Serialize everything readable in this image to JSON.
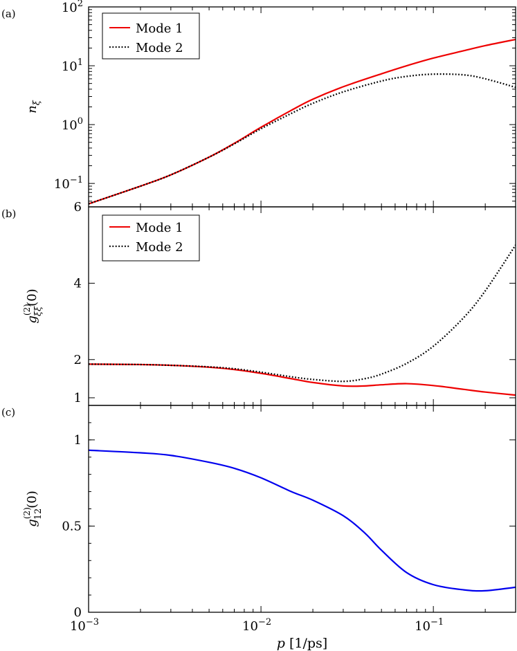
{
  "chart_data": [
    {
      "type": "line",
      "panel_label": "(a)",
      "ylabel": "n_ξ",
      "ylabel_main": "n",
      "ylabel_sub": "ξ",
      "xscale": "log",
      "yscale": "log",
      "xlim": [
        0.001,
        0.3
      ],
      "ylim": [
        0.04,
        100
      ],
      "yticks": [
        {
          "value": 0.1,
          "base": "10",
          "exp": "−1"
        },
        {
          "value": 1,
          "base": "10",
          "exp": "0"
        },
        {
          "value": 10,
          "base": "10",
          "exp": "1"
        },
        {
          "value": 100,
          "base": "10",
          "exp": "2"
        }
      ],
      "legend": {
        "position": "top-left",
        "entries": [
          "Mode 1",
          "Mode 2"
        ]
      },
      "series": [
        {
          "name": "Mode 1",
          "color": "#ee0000",
          "style": "solid",
          "x": [
            0.001,
            0.002,
            0.003,
            0.005,
            0.007,
            0.01,
            0.015,
            0.02,
            0.03,
            0.05,
            0.07,
            0.1,
            0.15,
            0.2,
            0.3
          ],
          "y": [
            0.045,
            0.09,
            0.14,
            0.28,
            0.48,
            0.9,
            1.75,
            2.7,
            4.4,
            7.3,
            10.0,
            13.5,
            18.0,
            22.0,
            28.0
          ]
        },
        {
          "name": "Mode 2",
          "color": "#000000",
          "style": "dotted",
          "x": [
            0.001,
            0.002,
            0.003,
            0.005,
            0.007,
            0.01,
            0.015,
            0.02,
            0.03,
            0.05,
            0.07,
            0.1,
            0.15,
            0.2,
            0.3
          ],
          "y": [
            0.045,
            0.09,
            0.14,
            0.28,
            0.47,
            0.85,
            1.55,
            2.3,
            3.6,
            5.5,
            6.6,
            7.2,
            7.0,
            6.0,
            4.3
          ]
        }
      ]
    },
    {
      "type": "line",
      "panel_label": "(b)",
      "ylabel": "g_ξξ^(2)(0)",
      "ylabel_main": "g",
      "ylabel_sup": "(2)",
      "ylabel_sub": "ξξ",
      "ylabel_tail": "(0)",
      "xscale": "log",
      "yscale": "linear",
      "xlim": [
        0.001,
        0.3
      ],
      "ylim": [
        0.8,
        6
      ],
      "yticks": [
        {
          "value": 1,
          "label": "1"
        },
        {
          "value": 2,
          "label": "2"
        },
        {
          "value": 4,
          "label": "4"
        },
        {
          "value": 6,
          "label": "6"
        }
      ],
      "legend": {
        "position": "top-left",
        "entries": [
          "Mode 1",
          "Mode 2"
        ]
      },
      "series": [
        {
          "name": "Mode 1",
          "color": "#ee0000",
          "style": "solid",
          "x": [
            0.001,
            0.002,
            0.003,
            0.005,
            0.007,
            0.01,
            0.015,
            0.02,
            0.03,
            0.04,
            0.05,
            0.07,
            0.1,
            0.15,
            0.2,
            0.3
          ],
          "y": [
            1.88,
            1.87,
            1.85,
            1.8,
            1.74,
            1.64,
            1.5,
            1.4,
            1.31,
            1.31,
            1.34,
            1.37,
            1.32,
            1.22,
            1.15,
            1.07
          ]
        },
        {
          "name": "Mode 2",
          "color": "#000000",
          "style": "dotted",
          "x": [
            0.001,
            0.002,
            0.003,
            0.005,
            0.007,
            0.01,
            0.015,
            0.02,
            0.03,
            0.04,
            0.05,
            0.07,
            0.1,
            0.15,
            0.2,
            0.3
          ],
          "y": [
            1.88,
            1.87,
            1.85,
            1.81,
            1.76,
            1.67,
            1.55,
            1.48,
            1.43,
            1.5,
            1.62,
            1.9,
            2.35,
            3.1,
            3.8,
            5.0
          ]
        }
      ]
    },
    {
      "type": "line",
      "panel_label": "(c)",
      "ylabel": "g_12^(2)(0)",
      "ylabel_main": "g",
      "ylabel_sup": "(2)",
      "ylabel_sub": "12",
      "ylabel_tail": "(0)",
      "xlabel": "p [1/ps]",
      "xlabel_main": "p",
      "xlabel_unit": "[1/ps]",
      "xscale": "log",
      "yscale": "linear",
      "xlim": [
        0.001,
        0.3
      ],
      "ylim": [
        0,
        1.2
      ],
      "xticks": [
        {
          "value": 0.001,
          "base": "10",
          "exp": "−3"
        },
        {
          "value": 0.01,
          "base": "10",
          "exp": "−2"
        },
        {
          "value": 0.1,
          "base": "10",
          "exp": "−1"
        }
      ],
      "yticks": [
        {
          "value": 0,
          "label": "0"
        },
        {
          "value": 0.5,
          "label": "0.5"
        },
        {
          "value": 1,
          "label": "1"
        }
      ],
      "series": [
        {
          "color": "#0000ee",
          "style": "solid",
          "x": [
            0.001,
            0.002,
            0.003,
            0.005,
            0.007,
            0.01,
            0.015,
            0.02,
            0.03,
            0.04,
            0.05,
            0.07,
            0.1,
            0.15,
            0.2,
            0.3
          ],
          "y": [
            0.94,
            0.925,
            0.91,
            0.87,
            0.835,
            0.78,
            0.7,
            0.65,
            0.56,
            0.46,
            0.36,
            0.23,
            0.16,
            0.13,
            0.125,
            0.145
          ]
        }
      ]
    }
  ]
}
